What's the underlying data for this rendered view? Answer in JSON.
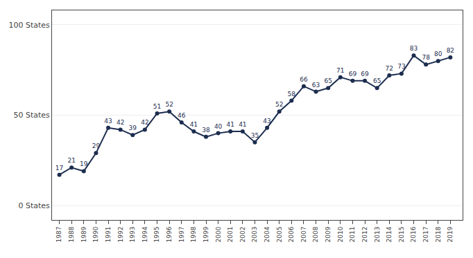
{
  "chart_data": {
    "type": "line",
    "x": [
      1987,
      1988,
      1989,
      1990,
      1991,
      1992,
      1993,
      1994,
      1995,
      1996,
      1997,
      1998,
      1999,
      2000,
      2001,
      2002,
      2003,
      2004,
      2005,
      2006,
      2007,
      2008,
      2009,
      2010,
      2011,
      2012,
      2013,
      2014,
      2015,
      2016,
      2017,
      2018,
      2019
    ],
    "values": [
      17,
      21,
      19,
      29,
      43,
      42,
      39,
      42,
      51,
      52,
      46,
      41,
      38,
      40,
      41,
      41,
      35,
      43,
      52,
      58,
      66,
      63,
      65,
      71,
      69,
      69,
      65,
      72,
      73,
      83,
      78,
      80,
      82
    ],
    "color": "#1c2d4f",
    "marker": "circle",
    "data_labels": true,
    "grid": true,
    "xlim": [
      1986.4,
      2020.0
    ],
    "xticks": [
      1987,
      1988,
      1989,
      1990,
      1991,
      1992,
      1993,
      1994,
      1995,
      1996,
      1997,
      1998,
      1999,
      2000,
      2001,
      2002,
      2003,
      2004,
      2005,
      2006,
      2007,
      2008,
      2009,
      2010,
      2011,
      2012,
      2013,
      2014,
      2015,
      2016,
      2017,
      2018,
      2019
    ],
    "ylim": [
      -8,
      108
    ],
    "yticks": [
      {
        "value": 0,
        "label": "0 States"
      },
      {
        "value": 50,
        "label": "50 States"
      },
      {
        "value": 100,
        "label": "100 States"
      }
    ]
  }
}
